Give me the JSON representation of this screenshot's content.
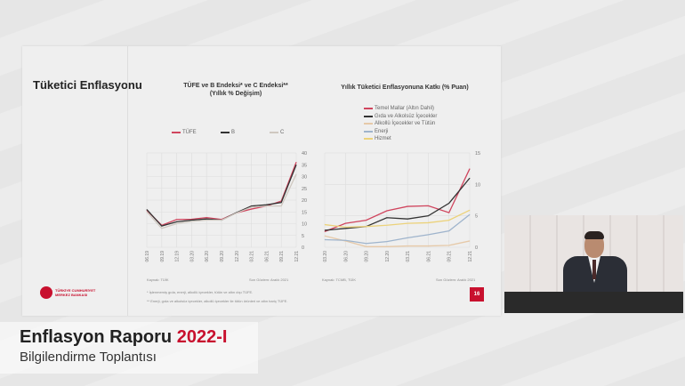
{
  "slide": {
    "title": "Tüketici Enflasyonu",
    "page_number": "16",
    "logo_text": "TÜRKİYE CUMHURİYET MERKEZ BANKASI",
    "footnote1": "* İşlenmemiş gıda, enerji, alkollü içecekler, tütün ve altın dışı TÜFE.",
    "footnote2": "** Enerji, gıda ve alkolsüz içecekler, alkollü içecekler ile tütün ürünleri ve altın hariç TÜFE.",
    "source1": "Kaynak: TÜİK",
    "update1": "Son Gözlem: Aralık 2021",
    "source2": "Kaynak: TCMB, TÜİK",
    "update2": "Son Gözlem: Aralık 2021"
  },
  "banner": {
    "title_main": "Enflasyon Raporu ",
    "title_accent": "2022-I",
    "subtitle": "Bilgilendirme Toplantısı",
    "accent_color": "#c8102e"
  },
  "chart_data": [
    {
      "type": "line",
      "title": "TÜFE ve B Endeksi* ve C Endeksi**",
      "subtitle": "(Yıllık % Değişim)",
      "x": [
        "06.19",
        "09.19",
        "12.19",
        "03.20",
        "06.20",
        "09.20",
        "12.20",
        "03.21",
        "06.21",
        "09.21",
        "12.21"
      ],
      "ylim": [
        0,
        40
      ],
      "yticks": [
        0,
        5,
        10,
        15,
        20,
        25,
        30,
        35,
        40
      ],
      "grid": true,
      "legend": "top",
      "series": [
        {
          "name": "TÜFE",
          "color": "#d0455e",
          "values": [
            15.7,
            9.3,
            11.8,
            11.9,
            12.6,
            11.8,
            14.6,
            16.2,
            17.5,
            19.6,
            36.1
          ]
        },
        {
          "name": "B",
          "color": "#333333",
          "values": [
            16.0,
            9.0,
            10.8,
            11.5,
            12.0,
            11.5,
            14.7,
            17.5,
            18.0,
            19.0,
            35.0
          ]
        },
        {
          "name": "C",
          "color": "#cfc8c0",
          "values": [
            15.0,
            8.0,
            10.0,
            11.0,
            11.5,
            11.5,
            14.5,
            17.0,
            17.5,
            17.5,
            31.0
          ]
        }
      ]
    },
    {
      "type": "line",
      "title": "Yıllık Tüketici Enflasyonuna Katkı (% Puan)",
      "x": [
        "03.20",
        "06.20",
        "09.20",
        "12.20",
        "03.21",
        "06.21",
        "09.21",
        "12.21"
      ],
      "ylim": [
        0,
        15
      ],
      "yticks": [
        0,
        5,
        10,
        15
      ],
      "grid": true,
      "legend": "top",
      "series": [
        {
          "name": "Temel Mallar (Altın Dahil)",
          "color": "#d0455e",
          "values": [
            2.5,
            3.8,
            4.3,
            5.8,
            6.5,
            6.6,
            5.5,
            12.5
          ]
        },
        {
          "name": "Gıda ve Alkolsüz İçecekler",
          "color": "#333333",
          "values": [
            2.7,
            3.0,
            3.3,
            4.7,
            4.5,
            5.0,
            7.0,
            11.0
          ]
        },
        {
          "name": "Alkollü İçecekler ve Tütün",
          "color": "#e6c9a8",
          "values": [
            1.8,
            1.0,
            0.1,
            0.1,
            0.2,
            0.2,
            0.3,
            1.0
          ]
        },
        {
          "name": "Enerji",
          "color": "#9fb4cc",
          "values": [
            1.2,
            1.1,
            0.6,
            0.9,
            1.5,
            2.0,
            2.6,
            5.2
          ]
        },
        {
          "name": "Hizmet",
          "color": "#ecd27a",
          "values": [
            3.6,
            3.2,
            3.3,
            3.5,
            3.8,
            3.9,
            4.3,
            5.9
          ]
        }
      ]
    }
  ]
}
